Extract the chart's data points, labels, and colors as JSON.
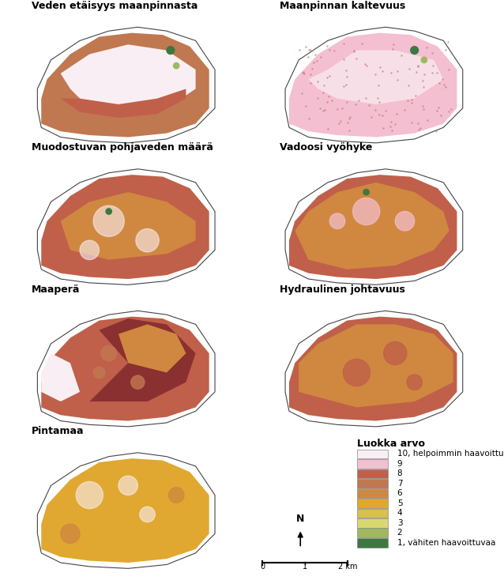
{
  "panel_titles": [
    "Veden etäisyys maanpinnasta",
    "Maanpinnan kaltevuus",
    "Muodostuvan pohjaveden määrä",
    "Vadoosi vyöhyke",
    "Maaperä",
    "Hydraulinen johtavuus",
    "Pintamaa",
    "Luokka arvo"
  ],
  "legend_title": "Luokka arvo",
  "legend_labels": [
    "10, helpoimmin haavoittuvaa",
    "9",
    "8",
    "7",
    "6",
    "5",
    "4",
    "3",
    "2",
    "1, vähiten haavoittuvaa"
  ],
  "legend_colors": [
    "#f9eef3",
    "#f4bfd0",
    "#c0604a",
    "#c07850",
    "#d08840",
    "#e0a830",
    "#d8c050",
    "#d8d870",
    "#a0b860",
    "#3c7840"
  ],
  "bg_color": "#ffffff",
  "figure_width": 6.38,
  "figure_height": 7.39,
  "title_fontsize": 9,
  "legend_fontsize": 7.5
}
